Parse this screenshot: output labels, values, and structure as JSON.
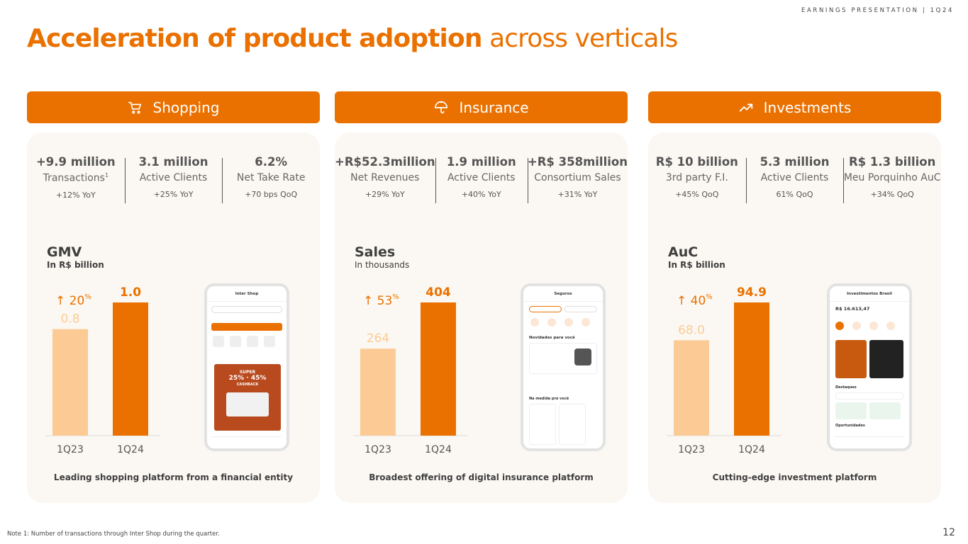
{
  "header": {
    "tag": "EARNINGS PRESENTATION | 1Q24",
    "title_bold": "Acceleration of product adoption",
    "title_light": "across verticals"
  },
  "colors": {
    "accent": "#ea7100",
    "light_bar": "#fccb95",
    "panel": "#fbf8f3"
  },
  "verticals": [
    {
      "name": "Shopping",
      "icon": "shopping-cart-icon",
      "stats": [
        {
          "value": "+9.9 million",
          "label": "Transactions",
          "label_sup": "1",
          "change": "+12% YoY"
        },
        {
          "value": "3.1 million",
          "label": "Active Clients",
          "label_sup": "",
          "change": "+25% YoY"
        },
        {
          "value": "6.2%",
          "label": "Net Take Rate",
          "label_sup": "",
          "change": "+70 bps QoQ"
        }
      ],
      "chart_title": "GMV",
      "chart_subtitle": "In R$ billion",
      "growth": "20",
      "growth_unit": "%",
      "footer": "Leading shopping platform from a financial entity",
      "phone": {
        "title": "Inter Shop",
        "promo_1": "25%",
        "promo_2": "45%",
        "promo_word": "SUPER",
        "promo_label": "CASHBACK"
      }
    },
    {
      "name": "Insurance",
      "icon": "umbrella-icon",
      "stats": [
        {
          "value": "+R$52.3million",
          "label": "Net Revenues",
          "label_sup": "",
          "change": "+29% YoY"
        },
        {
          "value": "1.9 million",
          "label": "Active Clients",
          "label_sup": "",
          "change": "+40% YoY"
        },
        {
          "value": "+R$ 358million",
          "label": "Consortium Sales",
          "label_sup": "",
          "change": "+31% YoY"
        }
      ],
      "chart_title": "Sales",
      "chart_subtitle": "In thousands",
      "growth": "53",
      "growth_unit": "%",
      "footer": "Broadest offering of digital insurance platform",
      "phone": {
        "title": "Seguros",
        "section": "Novidades para você",
        "section_2": "Na medida pra você"
      }
    },
    {
      "name": "Investments",
      "icon": "trending-up-icon",
      "stats": [
        {
          "value": "R$ 10 billion",
          "label": "3rd party F.I.",
          "label_sup": "",
          "change": "+45% QoQ"
        },
        {
          "value": "5.3 million",
          "label": "Active Clients",
          "label_sup": "",
          "change": "61% QoQ"
        },
        {
          "value": "R$ 1.3 billion",
          "label": "Meu Porquinho AuC",
          "label_sup": "",
          "change": "+34% QoQ"
        }
      ],
      "chart_title": "AuC",
      "chart_subtitle": "In R$ billion",
      "growth": "40",
      "growth_unit": "%",
      "footer": "Cutting-edge investment platform",
      "phone": {
        "title": "Investimentos Brasil",
        "balance": "R$ 16.613,47",
        "section": "Destaques",
        "section_2": "Oportunidades"
      }
    }
  ],
  "chart_data": [
    {
      "type": "bar",
      "title": "GMV",
      "subtitle": "In R$ billion",
      "categories": [
        "1Q23",
        "1Q24"
      ],
      "values": [
        0.8,
        1.0
      ],
      "labels": [
        "0.8",
        "1.0"
      ],
      "ylim": [
        0,
        1.0
      ]
    },
    {
      "type": "bar",
      "title": "Sales",
      "subtitle": "In thousands",
      "categories": [
        "1Q23",
        "1Q24"
      ],
      "values": [
        264,
        404
      ],
      "labels": [
        "264",
        "404"
      ],
      "ylim": [
        0,
        404
      ]
    },
    {
      "type": "bar",
      "title": "AuC",
      "subtitle": "In R$ billion",
      "categories": [
        "1Q23",
        "1Q24"
      ],
      "values": [
        68.0,
        94.9
      ],
      "labels": [
        "68.0",
        "94.9"
      ],
      "ylim": [
        0,
        94.9
      ]
    }
  ],
  "note": "Note 1: Number of transactions through Inter Shop during the quarter.",
  "page_number": "12"
}
